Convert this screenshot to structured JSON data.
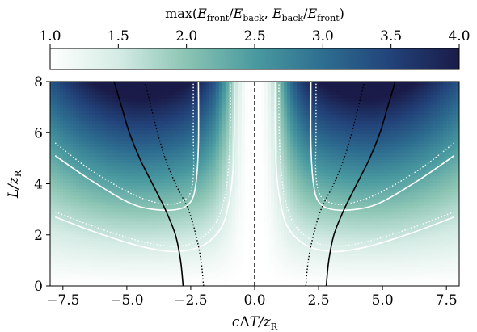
{
  "chart_data": {
    "type": "heatmap",
    "title": "",
    "xlabel": "cΔT/z_R",
    "ylabel": "L/z_R",
    "xlim": [
      -8,
      8
    ],
    "ylim": [
      0,
      8
    ],
    "x_ticks": [
      -7.5,
      -5.0,
      -2.5,
      0.0,
      2.5,
      5.0,
      7.5
    ],
    "x_tick_labels": [
      "−7.5",
      "−5.0",
      "−2.5",
      "0.0",
      "2.5",
      "5.0",
      "7.5"
    ],
    "y_ticks": [
      0,
      2,
      4,
      6,
      8
    ],
    "y_tick_labels": [
      "0",
      "2",
      "4",
      "6",
      "8"
    ],
    "colorbar": {
      "label": "max(E_front/E_back, E_back/E_front)",
      "range": [
        1.0,
        4.0
      ],
      "ticks": [
        1.0,
        1.5,
        2.0,
        2.5,
        3.0,
        3.5,
        4.0
      ],
      "tick_labels": [
        "1.0",
        "1.5",
        "2.0",
        "2.5",
        "3.0",
        "3.5",
        "4.0"
      ],
      "placement": "top",
      "colormap": [
        "#ffffff",
        "#d4ebe4",
        "#8cc5b4",
        "#4a9aa0",
        "#2d6d90",
        "#22437a",
        "#1a1b48"
      ]
    },
    "grid": false,
    "symmetric_about_x0": true,
    "overlays": [
      {
        "style": "solid-white",
        "points": [
          [
            7.8,
            5.1
          ],
          [
            6.5,
            4.2
          ],
          [
            5.0,
            3.3
          ],
          [
            4.0,
            3.0
          ],
          [
            3.0,
            3.0
          ],
          [
            2.5,
            3.3
          ],
          [
            2.3,
            4.0
          ],
          [
            2.2,
            5.5
          ],
          [
            2.2,
            8.0
          ]
        ]
      },
      {
        "style": "dotted-white",
        "points": [
          [
            7.8,
            5.6
          ],
          [
            6.5,
            4.6
          ],
          [
            5.0,
            3.7
          ],
          [
            4.0,
            3.3
          ],
          [
            3.2,
            3.2
          ],
          [
            2.6,
            3.5
          ],
          [
            2.4,
            4.3
          ],
          [
            2.4,
            6.0
          ],
          [
            2.4,
            8.0
          ]
        ]
      },
      {
        "style": "solid-white",
        "points": [
          [
            7.8,
            2.7
          ],
          [
            6.5,
            2.2
          ],
          [
            5.0,
            1.7
          ],
          [
            4.0,
            1.45
          ],
          [
            3.0,
            1.35
          ],
          [
            2.0,
            1.6
          ],
          [
            1.3,
            2.3
          ],
          [
            1.0,
            3.3
          ],
          [
            0.85,
            4.5
          ],
          [
            0.8,
            6.0
          ],
          [
            0.8,
            8.0
          ]
        ]
      },
      {
        "style": "dotted-white",
        "points": [
          [
            7.8,
            2.9
          ],
          [
            6.5,
            2.4
          ],
          [
            5.0,
            1.9
          ],
          [
            4.0,
            1.65
          ],
          [
            3.0,
            1.55
          ],
          [
            2.2,
            1.8
          ],
          [
            1.5,
            2.5
          ],
          [
            1.15,
            3.6
          ],
          [
            1.0,
            5.0
          ],
          [
            0.95,
            6.5
          ],
          [
            0.95,
            8.0
          ]
        ]
      },
      {
        "style": "solid-black",
        "points": [
          [
            2.8,
            0.0
          ],
          [
            2.9,
            1.0
          ],
          [
            3.1,
            2.0
          ],
          [
            3.5,
            3.0
          ],
          [
            4.0,
            4.0
          ],
          [
            4.5,
            5.0
          ],
          [
            4.9,
            6.0
          ],
          [
            5.2,
            7.0
          ],
          [
            5.5,
            8.0
          ]
        ]
      },
      {
        "style": "dotted-black",
        "points": [
          [
            2.0,
            0.0
          ],
          [
            2.1,
            1.0
          ],
          [
            2.3,
            2.0
          ],
          [
            2.6,
            3.0
          ],
          [
            3.1,
            4.0
          ],
          [
            3.5,
            5.0
          ],
          [
            3.8,
            6.0
          ],
          [
            4.05,
            7.0
          ],
          [
            4.3,
            8.0
          ]
        ]
      },
      {
        "style": "dashed-black",
        "points": [
          [
            0.0,
            0.0
          ],
          [
            0.0,
            8.0
          ]
        ]
      }
    ]
  }
}
